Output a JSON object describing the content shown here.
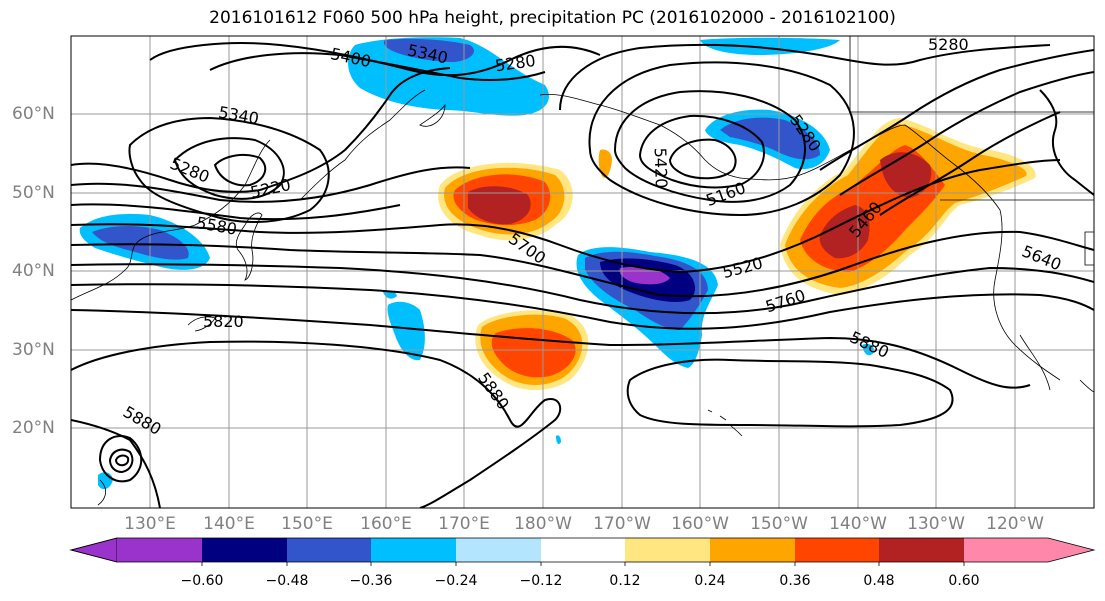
{
  "title": "2016101612 F060 500 hPa height, precipitation PC (2016102000 - 2016102100)",
  "lat_labels": [
    "60°N",
    "50°N",
    "40°N",
    "30°N",
    "20°N"
  ],
  "lon_labels": [
    "130°E",
    "140°E",
    "150°E",
    "160°E",
    "170°E",
    "180°W",
    "170°W",
    "160°W",
    "150°W",
    "140°W",
    "130°W",
    "120°W"
  ],
  "contour_labels": [
    "5400",
    "5340",
    "5280",
    "5280",
    "5340",
    "5280",
    "5220",
    "5580",
    "5820",
    "5880",
    "5880",
    "5420",
    "5160",
    "5280",
    "5700",
    "5520",
    "5760",
    "5460",
    "5640",
    "5880"
  ],
  "colorbar": {
    "ticks": [
      "−0.60",
      "−0.48",
      "−0.36",
      "−0.24",
      "−0.12",
      "0.12",
      "0.24",
      "0.36",
      "0.48",
      "0.60"
    ],
    "colors": [
      "#9933cc",
      "#000080",
      "#3355cc",
      "#00bfff",
      "#b3e5ff",
      "#ffffff",
      "#ffe680",
      "#ffa500",
      "#ff4500",
      "#b22222",
      "#ff88aa"
    ]
  }
}
